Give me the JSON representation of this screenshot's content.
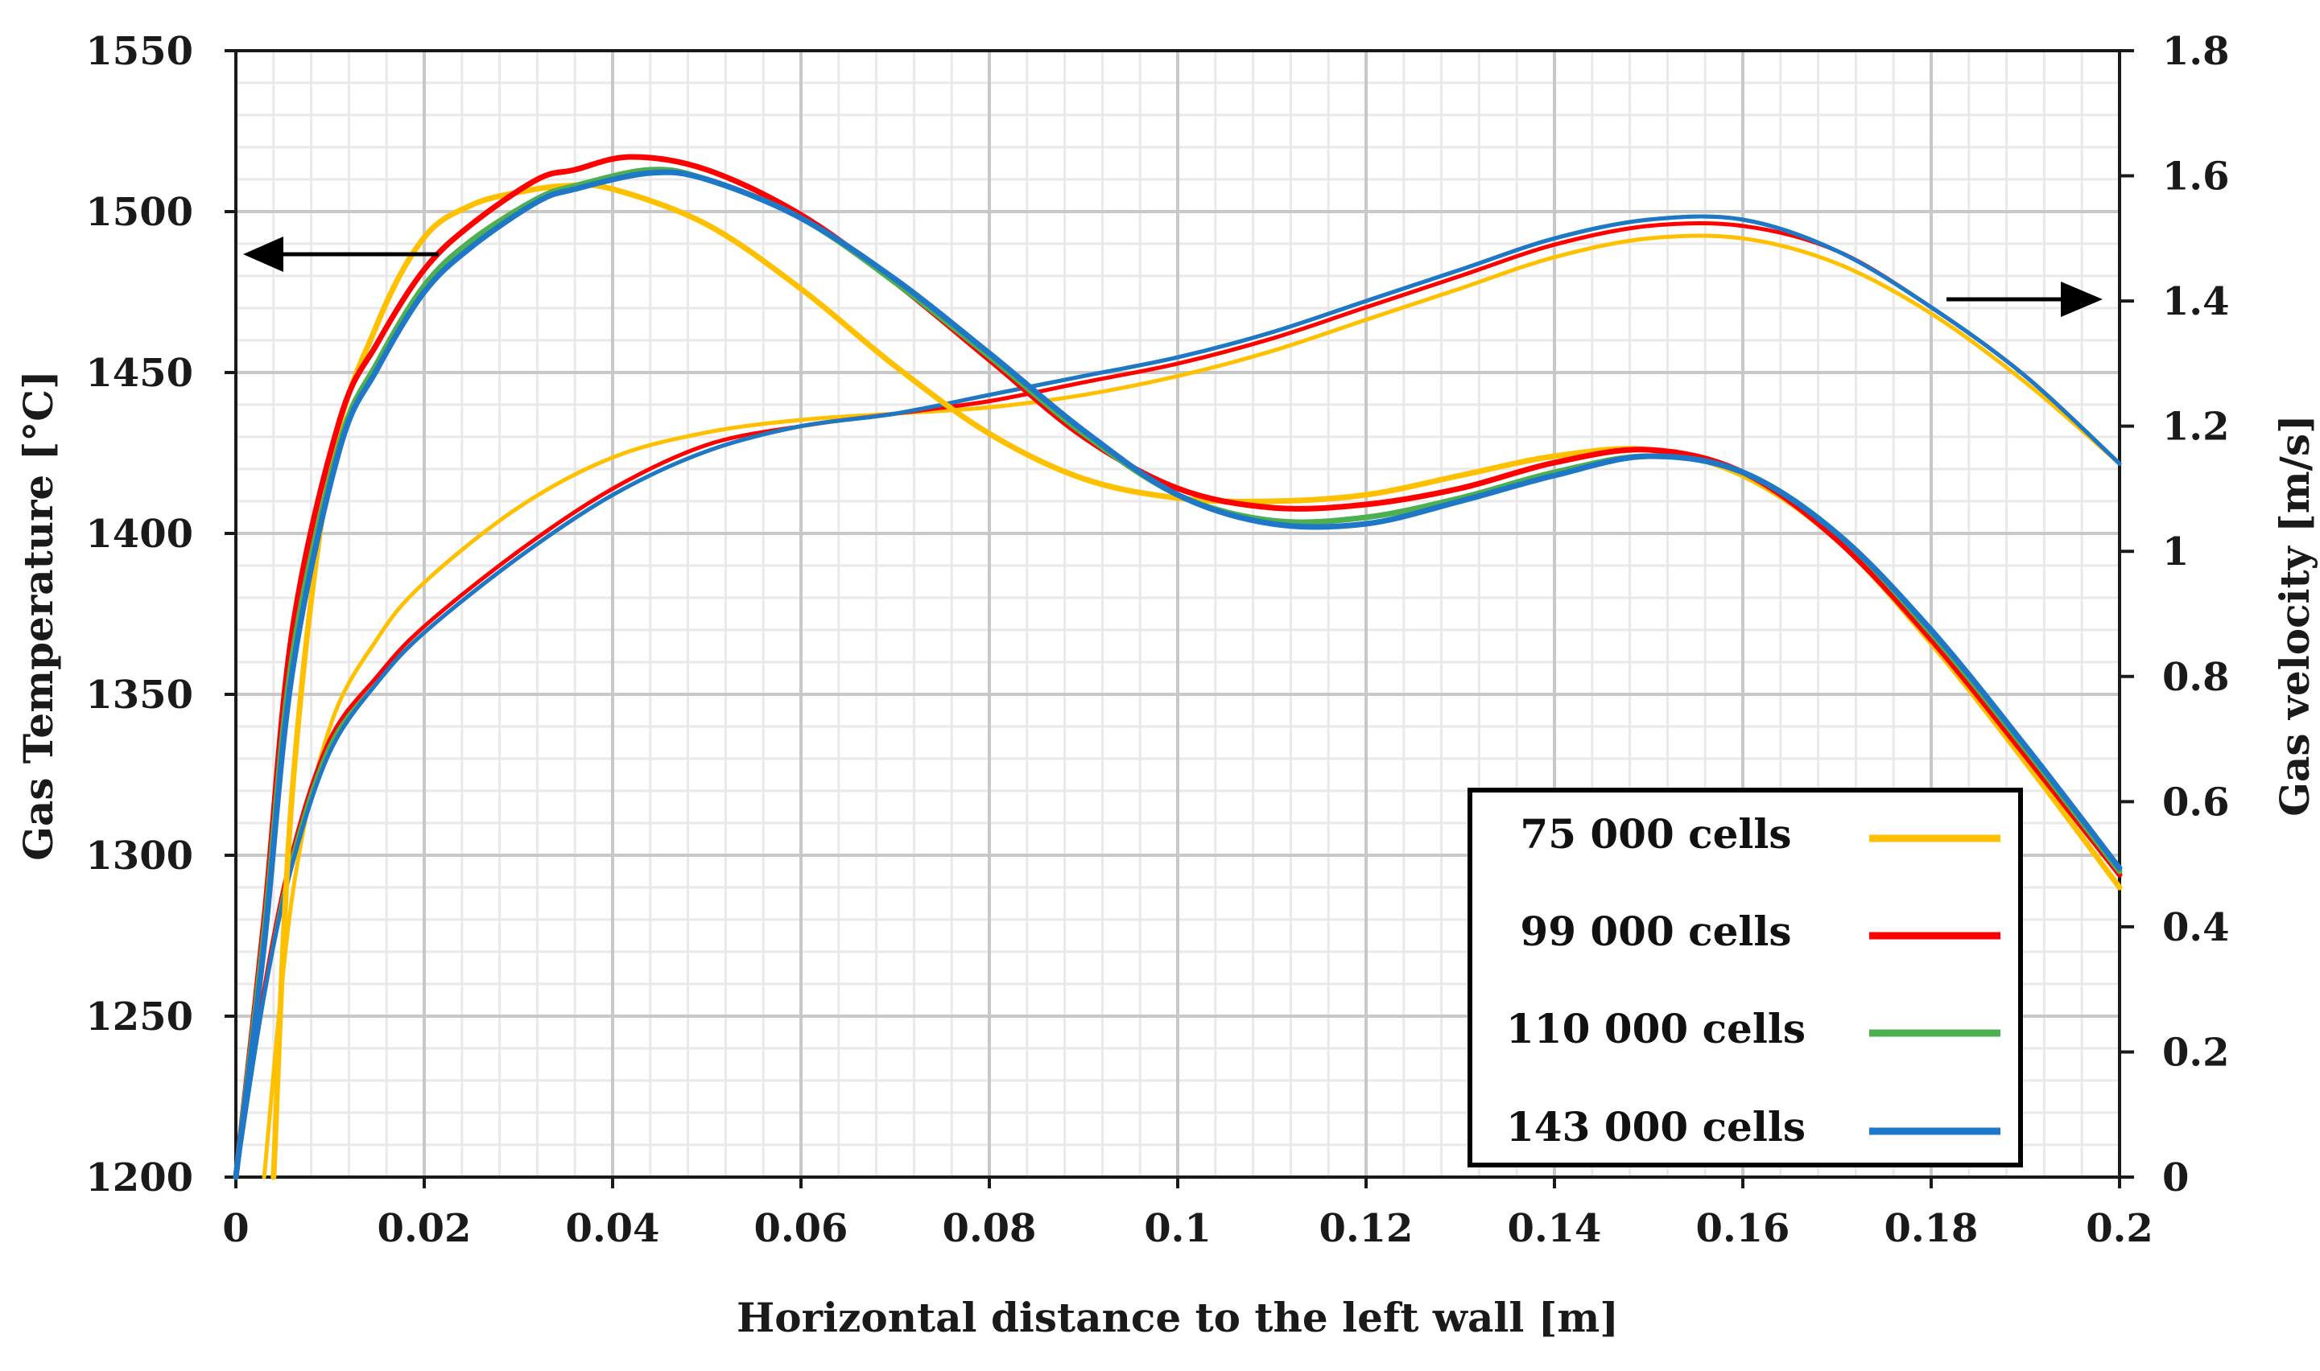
{
  "chart_data": {
    "type": "line",
    "title": "",
    "xlabel": "Horizontal distance to the left wall [m]",
    "ylabel_left": "Gas Temperature [°C]",
    "ylabel_right": "Gas velocity [m/s]",
    "xlim": [
      0,
      0.2
    ],
    "ylim_left": [
      1200,
      1550
    ],
    "ylim_right": [
      0,
      1.8
    ],
    "x_ticks": [
      "0",
      "0.02",
      "0.04",
      "0.06",
      "0.08",
      "0.1",
      "0.12",
      "0.14",
      "0.16",
      "0.18",
      "0.2"
    ],
    "y_left_ticks": [
      "1200",
      "1250",
      "1300",
      "1350",
      "1400",
      "1450",
      "1500",
      "1550"
    ],
    "y_right_ticks": [
      "0",
      "0.2",
      "0.4",
      "0.6",
      "0.8",
      "1",
      "1.2",
      "1.4",
      "1.6",
      "1.8"
    ],
    "grid": true,
    "legend_position": "bottom-right",
    "annotations": [
      {
        "type": "arrow",
        "meaning": "temperature curves read on left axis",
        "direction": "left"
      },
      {
        "type": "arrow",
        "meaning": "velocity curves read on right axis",
        "direction": "right"
      }
    ],
    "series": [
      {
        "name": "75 000 cells",
        "color": "#FFC000",
        "quantity": "temperature",
        "axis": "left",
        "x": [
          0.004,
          0.006,
          0.01,
          0.015,
          0.02,
          0.025,
          0.03,
          0.035,
          0.04,
          0.05,
          0.06,
          0.07,
          0.08,
          0.09,
          0.1,
          0.11,
          0.12,
          0.13,
          0.14,
          0.15,
          0.16,
          0.17,
          0.18,
          0.19,
          0.2
        ],
        "values": [
          1200,
          1320,
          1420,
          1465,
          1492,
          1502,
          1506,
          1508,
          1507,
          1496,
          1476,
          1452,
          1431,
          1417,
          1411,
          1410,
          1412,
          1418,
          1424,
          1426,
          1418,
          1398,
          1366,
          1329,
          1290
        ]
      },
      {
        "name": "99 000 cells",
        "color": "#FF0000",
        "quantity": "temperature",
        "axis": "left",
        "x": [
          0,
          0.003,
          0.006,
          0.011,
          0.015,
          0.02,
          0.025,
          0.032,
          0.036,
          0.042,
          0.05,
          0.06,
          0.07,
          0.08,
          0.09,
          0.1,
          0.11,
          0.12,
          0.13,
          0.14,
          0.15,
          0.16,
          0.17,
          0.18,
          0.19,
          0.2
        ],
        "values": [
          1200,
          1280,
          1370,
          1435,
          1459,
          1482,
          1496,
          1510,
          1513,
          1517,
          1513,
          1499,
          1478,
          1454,
          1430,
          1414,
          1408,
          1409,
          1414,
          1422,
          1426,
          1419,
          1398,
          1367,
          1331,
          1294
        ]
      },
      {
        "name": "110 000 cells",
        "color": "#4CAF50",
        "quantity": "temperature",
        "axis": "left",
        "x": [
          0,
          0.003,
          0.006,
          0.011,
          0.015,
          0.02,
          0.025,
          0.032,
          0.036,
          0.044,
          0.05,
          0.06,
          0.07,
          0.08,
          0.09,
          0.1,
          0.11,
          0.12,
          0.13,
          0.14,
          0.15,
          0.16,
          0.17,
          0.18,
          0.19,
          0.2
        ],
        "values": [
          1200,
          1276,
          1362,
          1428,
          1453,
          1477,
          1491,
          1504,
          1508,
          1513,
          1510,
          1498,
          1478,
          1455,
          1431,
          1412,
          1404,
          1405,
          1411,
          1419,
          1424,
          1419,
          1400,
          1369,
          1333,
          1295
        ]
      },
      {
        "name": "143 000 cells",
        "color": "#1F77C8",
        "quantity": "temperature",
        "axis": "left",
        "x": [
          0,
          0.003,
          0.006,
          0.011,
          0.015,
          0.02,
          0.025,
          0.032,
          0.036,
          0.044,
          0.05,
          0.06,
          0.07,
          0.08,
          0.09,
          0.1,
          0.11,
          0.12,
          0.13,
          0.14,
          0.15,
          0.16,
          0.17,
          0.18,
          0.19,
          0.2
        ],
        "values": [
          1200,
          1272,
          1357,
          1426,
          1451,
          1475,
          1489,
          1503,
          1507,
          1512,
          1510,
          1498,
          1479,
          1456,
          1432,
          1412,
          1403,
          1403,
          1410,
          1418,
          1424,
          1419,
          1400,
          1370,
          1334,
          1296
        ]
      },
      {
        "name": "75 000 cells",
        "color": "#FFC000",
        "quantity": "velocity",
        "axis": "right",
        "x": [
          0.003,
          0.006,
          0.01,
          0.015,
          0.02,
          0.03,
          0.04,
          0.05,
          0.06,
          0.07,
          0.08,
          0.09,
          0.1,
          0.11,
          0.12,
          0.13,
          0.14,
          0.15,
          0.16,
          0.17,
          0.18,
          0.19,
          0.2
        ],
        "values": [
          0,
          0.45,
          0.72,
          0.86,
          0.95,
          1.07,
          1.15,
          1.19,
          1.21,
          1.22,
          1.23,
          1.25,
          1.28,
          1.32,
          1.37,
          1.42,
          1.47,
          1.5,
          1.5,
          1.46,
          1.38,
          1.27,
          1.14
        ]
      },
      {
        "name": "99 000 cells",
        "color": "#FF0000",
        "quantity": "velocity",
        "axis": "right",
        "x": [
          0,
          0.003,
          0.006,
          0.01,
          0.015,
          0.02,
          0.03,
          0.04,
          0.05,
          0.06,
          0.07,
          0.08,
          0.09,
          0.1,
          0.11,
          0.12,
          0.13,
          0.14,
          0.15,
          0.16,
          0.17,
          0.18,
          0.19,
          0.2
        ],
        "values": [
          0,
          0.3,
          0.52,
          0.7,
          0.8,
          0.88,
          1.0,
          1.1,
          1.17,
          1.2,
          1.22,
          1.24,
          1.27,
          1.3,
          1.34,
          1.39,
          1.44,
          1.49,
          1.52,
          1.52,
          1.48,
          1.39,
          1.28,
          1.14
        ]
      },
      {
        "name": "110 000 cells",
        "color": "#4CAF50",
        "quantity": "velocity",
        "axis": "right",
        "x": [
          0,
          0.003,
          0.006,
          0.01,
          0.015,
          0.02,
          0.03,
          0.04,
          0.05,
          0.06,
          0.07,
          0.08,
          0.09,
          0.1,
          0.11,
          0.12,
          0.13,
          0.14,
          0.15,
          0.16,
          0.17,
          0.18,
          0.19,
          0.2
        ],
        "values": [
          0,
          0.29,
          0.51,
          0.69,
          0.79,
          0.87,
          0.99,
          1.09,
          1.16,
          1.2,
          1.22,
          1.25,
          1.28,
          1.31,
          1.35,
          1.4,
          1.45,
          1.5,
          1.53,
          1.53,
          1.48,
          1.39,
          1.28,
          1.14
        ]
      },
      {
        "name": "143 000 cells",
        "color": "#1F77C8",
        "quantity": "velocity",
        "axis": "right",
        "x": [
          0,
          0.003,
          0.006,
          0.01,
          0.015,
          0.02,
          0.03,
          0.04,
          0.05,
          0.06,
          0.07,
          0.08,
          0.09,
          0.1,
          0.11,
          0.12,
          0.13,
          0.14,
          0.15,
          0.16,
          0.17,
          0.18,
          0.19,
          0.2
        ],
        "values": [
          0,
          0.29,
          0.5,
          0.68,
          0.79,
          0.87,
          0.99,
          1.09,
          1.16,
          1.2,
          1.22,
          1.25,
          1.28,
          1.31,
          1.35,
          1.4,
          1.45,
          1.5,
          1.53,
          1.53,
          1.48,
          1.39,
          1.28,
          1.14
        ]
      }
    ],
    "legend": [
      {
        "label": "75 000 cells",
        "color": "#FFC000"
      },
      {
        "label": "99 000 cells",
        "color": "#FF0000"
      },
      {
        "label": "110 000 cells",
        "color": "#4CAF50"
      },
      {
        "label": "143 000 cells",
        "color": "#1F77C8"
      }
    ]
  }
}
